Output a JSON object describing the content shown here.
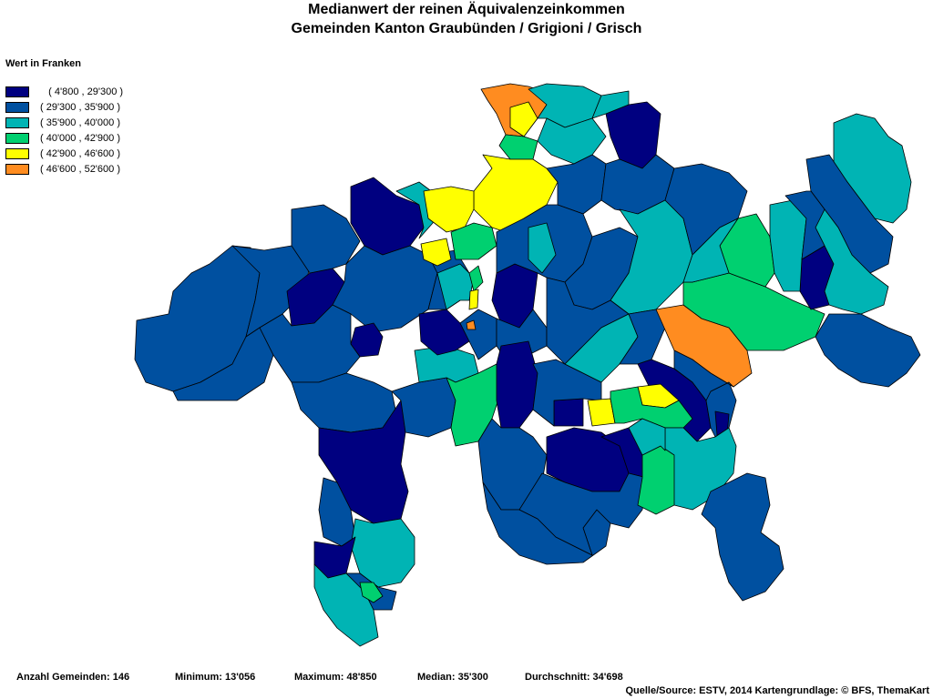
{
  "title": {
    "line1": "Medianwert der reinen Äquivalenzeinkommen",
    "line2": "Gemeinden Kanton Graubünden / Grigioni / Grisch"
  },
  "legend": {
    "title": "Wert in Franken",
    "classes": [
      {
        "label": "   ( 4'800 , 29'300 )",
        "color": "#000080",
        "key": "c1"
      },
      {
        "label": "( 29'300 , 35'900 )",
        "color": "#0050A0",
        "key": "c2"
      },
      {
        "label": "( 35'900 , 40'000 )",
        "color": "#00B4B4",
        "key": "c3"
      },
      {
        "label": "( 40'000 , 42'900 )",
        "color": "#00D070",
        "key": "c4"
      },
      {
        "label": "( 42'900 , 46'600 )",
        "color": "#FFFF00",
        "key": "c5"
      },
      {
        "label": "( 46'600 , 52'600 )",
        "color": "#FF8C20",
        "key": "c6"
      }
    ]
  },
  "stats": {
    "count": "Anzahl Gemeinden: 146",
    "min": "Minimum: 13'056",
    "max": "Maximum: 48'850",
    "median": "Median: 35'300",
    "mean": "Durchschnitt: 34'698"
  },
  "source": "Quelle/Source: ESTV, 2014 Kartengrundlage: © BFS, ThemaKart"
}
